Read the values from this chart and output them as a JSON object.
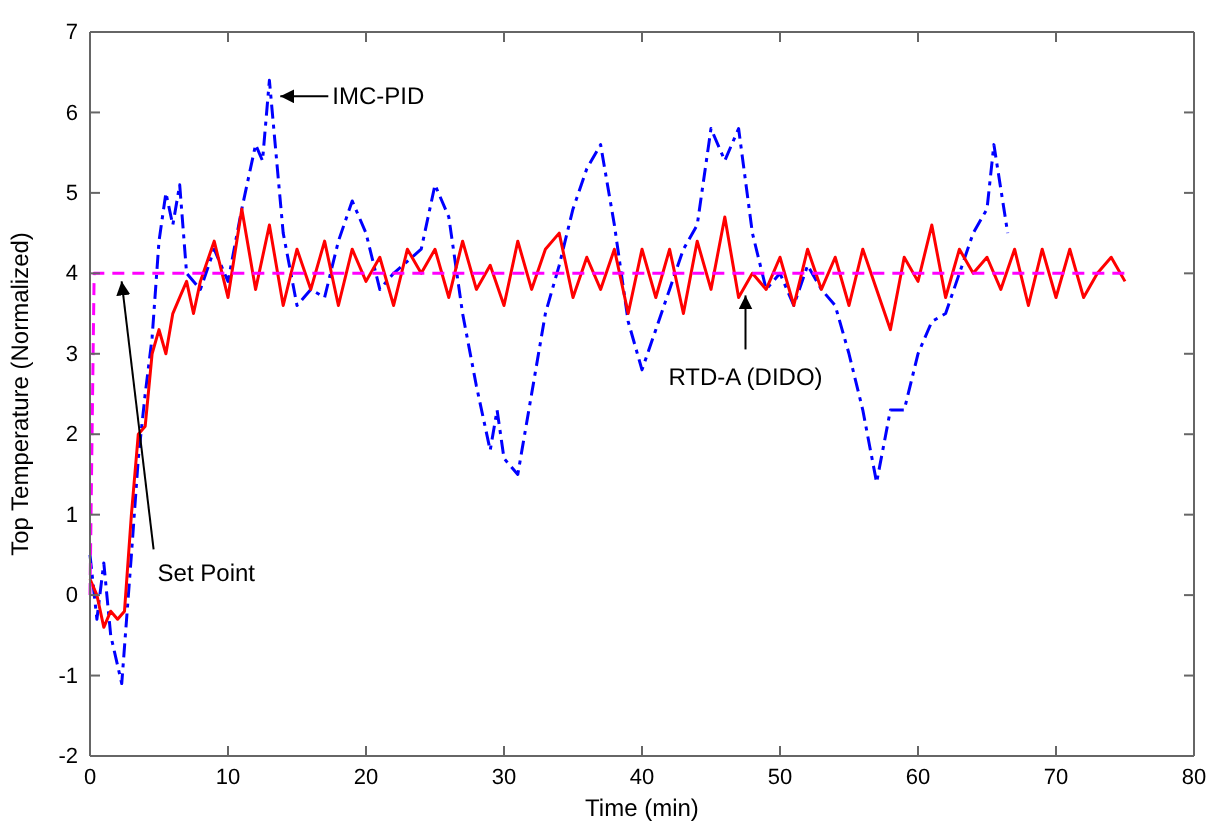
{
  "chart_data": {
    "type": "line",
    "xlabel": "Time  (min)",
    "ylabel": "Top Temperature (Normalized)",
    "xlim": [
      0,
      80
    ],
    "xticks": [
      0,
      10,
      20,
      30,
      40,
      50,
      60,
      70,
      80
    ],
    "ylim": [
      -2,
      7
    ],
    "yticks": [
      -2,
      -1,
      0,
      1,
      2,
      3,
      4,
      5,
      6,
      7
    ],
    "grid": false,
    "series": [
      {
        "color": "#0000ff",
        "line_style": "dashdot",
        "x": [
          0,
          0.5,
          1,
          1.5,
          2.3,
          3,
          3.5,
          4,
          4.5,
          5,
          5.5,
          6,
          6.5,
          7,
          8,
          9,
          10,
          11,
          12,
          12.5,
          13,
          14,
          15,
          16,
          17,
          18,
          19,
          20,
          21,
          22,
          24,
          25,
          26,
          27,
          28,
          29,
          29.5,
          30,
          31,
          32,
          33,
          34,
          35,
          36,
          37,
          38,
          39,
          40,
          41,
          42,
          43,
          44,
          45,
          46,
          47,
          48,
          49,
          50,
          51,
          52,
          53,
          54,
          55,
          56,
          57,
          58,
          59,
          60,
          61,
          62,
          63,
          64,
          65,
          65.5,
          66.5
        ],
        "values": [
          0.5,
          -0.3,
          0.4,
          -0.5,
          -1.1,
          0.5,
          1.7,
          2.5,
          3.2,
          4.4,
          5.0,
          4.6,
          5.1,
          4.0,
          3.8,
          4.3,
          3.9,
          4.8,
          5.6,
          5.4,
          6.4,
          4.5,
          3.6,
          3.8,
          3.7,
          4.4,
          4.9,
          4.5,
          3.8,
          4.0,
          4.3,
          5.1,
          4.7,
          3.5,
          2.6,
          1.8,
          2.3,
          1.7,
          1.5,
          2.5,
          3.5,
          4.1,
          4.8,
          5.3,
          5.6,
          4.6,
          3.4,
          2.8,
          3.3,
          3.8,
          4.3,
          4.6,
          5.8,
          5.4,
          5.8,
          4.5,
          3.8,
          4.0,
          3.6,
          4.1,
          3.8,
          3.6,
          3.0,
          2.3,
          1.4,
          2.3,
          2.3,
          3.0,
          3.4,
          3.5,
          4.0,
          4.5,
          4.8,
          5.6,
          4.5
        ]
      },
      {
        "color": "#ff0000",
        "line_style": "solid",
        "x": [
          0,
          0.5,
          1,
          1.5,
          2,
          2.5,
          3,
          3.5,
          4,
          4.5,
          5,
          5.5,
          6,
          6.5,
          7,
          7.5,
          8,
          9,
          10,
          11,
          12,
          13,
          14,
          15,
          16,
          17,
          18,
          19,
          20,
          21,
          22,
          23,
          24,
          25,
          26,
          27,
          28,
          29,
          30,
          31,
          32,
          33,
          34,
          35,
          36,
          37,
          38,
          39,
          40,
          41,
          42,
          43,
          44,
          45,
          46,
          47,
          48,
          49,
          50,
          51,
          52,
          53,
          54,
          55,
          56,
          57,
          58,
          59,
          60,
          61,
          62,
          63,
          64,
          65,
          66,
          67,
          68,
          69,
          70,
          71,
          72,
          73,
          74,
          75
        ],
        "values": [
          0.2,
          0,
          -0.4,
          -0.2,
          -0.3,
          -0.2,
          1.0,
          2.0,
          2.1,
          3.0,
          3.3,
          3.0,
          3.5,
          3.7,
          3.9,
          3.5,
          3.9,
          4.4,
          3.7,
          4.8,
          3.8,
          4.6,
          3.6,
          4.3,
          3.8,
          4.4,
          3.6,
          4.3,
          3.9,
          4.2,
          3.6,
          4.3,
          4.0,
          4.3,
          3.7,
          4.4,
          3.8,
          4.1,
          3.6,
          4.4,
          3.8,
          4.3,
          4.5,
          3.7,
          4.2,
          3.8,
          4.3,
          3.5,
          4.3,
          3.7,
          4.3,
          3.5,
          4.4,
          3.8,
          4.7,
          3.7,
          4.0,
          3.8,
          4.2,
          3.6,
          4.3,
          3.8,
          4.2,
          3.6,
          4.3,
          3.8,
          3.3,
          4.2,
          3.9,
          4.6,
          3.7,
          4.3,
          4.0,
          4.2,
          3.8,
          4.3,
          3.6,
          4.3,
          3.7,
          4.3,
          3.7,
          4.0,
          4.2,
          3.9
        ]
      },
      {
        "color": "#ff00ff",
        "line_style": "dashed",
        "x": [
          0,
          0.3,
          75
        ],
        "values": [
          0,
          4,
          4
        ]
      }
    ],
    "annotations": [
      {
        "text": "IMC-PID",
        "x": 13.5,
        "y": 6.2
      },
      {
        "text": "Set Point",
        "x": 2,
        "y": 4
      },
      {
        "text": "RTD-A (DIDO)",
        "x": 47.5,
        "y": 3.8
      }
    ]
  }
}
